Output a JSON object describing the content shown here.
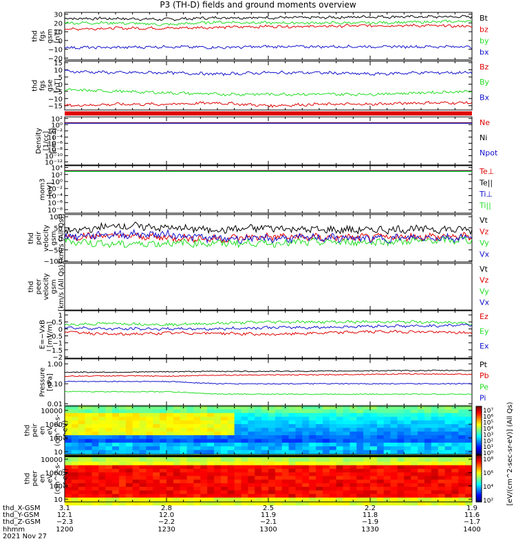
{
  "title": "P3 (TH-D) fields and ground moments overview",
  "colors": {
    "black": "#000000",
    "red": "#e00000",
    "green": "#22dd22",
    "blue": "#1010cc"
  },
  "panels": [
    {
      "id": "fgs-gsm",
      "ylabel": [
        "thd",
        "fgs",
        "gsm",
        "[nT]"
      ],
      "ticks": [
        {
          "v": 30,
          "t": "30"
        },
        {
          "v": 20,
          "t": "20"
        },
        {
          "v": 10,
          "t": "10"
        },
        {
          "v": 0,
          "t": "0"
        },
        {
          "v": -10,
          "t": "−10"
        },
        {
          "v": -20,
          "t": "−20"
        }
      ],
      "ylim": [
        -22,
        32
      ],
      "legend": [
        {
          "text": "Bt",
          "color": "black"
        },
        {
          "text": "bz",
          "color": "red"
        },
        {
          "text": "by",
          "color": "green"
        },
        {
          "text": "bx",
          "color": "blue"
        }
      ]
    },
    {
      "id": "fgs-gse",
      "ylabel": [
        "thd",
        "fgs",
        "gse",
        "[nT]"
      ],
      "ticks": [
        {
          "v": 15,
          "t": "15"
        },
        {
          "v": 10,
          "t": "10"
        },
        {
          "v": 5,
          "t": "5"
        },
        {
          "v": 0,
          "t": "0"
        },
        {
          "v": -5,
          "t": "−5"
        },
        {
          "v": -10,
          "t": "−10"
        },
        {
          "v": -15,
          "t": "−15"
        }
      ],
      "ylim": [
        -18,
        16
      ],
      "legend": [
        {
          "text": "Bz",
          "color": "red"
        },
        {
          "text": "By",
          "color": "green"
        },
        {
          "text": "Bx",
          "color": "blue"
        }
      ]
    },
    {
      "id": "density",
      "ylabel": [
        "Density",
        "[1/cc]",
        "[cm−3]"
      ],
      "ticks": [
        {
          "v": 2,
          "t": "10²"
        },
        {
          "v": 0,
          "t": "10⁰"
        },
        {
          "v": -2,
          "t": "10⁻²"
        },
        {
          "v": -4,
          "t": "10⁻⁴"
        },
        {
          "v": -6,
          "t": "10⁻⁶"
        },
        {
          "v": -8,
          "t": "10⁻⁸"
        },
        {
          "v": -10,
          "t": "10⁻¹⁰"
        },
        {
          "v": -12,
          "t": "10⁻¹²"
        }
      ],
      "ylim": [
        -13,
        2.5
      ],
      "legend": [
        {
          "text": "Ne",
          "color": "red"
        },
        {
          "text": "Ni",
          "color": "black"
        },
        {
          "text": "Npot",
          "color": "blue"
        }
      ]
    },
    {
      "id": "temperature",
      "ylabel": [
        "mom3",
        "[eV]"
      ],
      "ticks": [
        {
          "v": 4,
          "t": "10⁴"
        },
        {
          "v": 2,
          "t": "10²"
        },
        {
          "v": 0,
          "t": "10⁰"
        },
        {
          "v": -2,
          "t": "10⁻²"
        },
        {
          "v": -4,
          "t": "10⁻⁴"
        },
        {
          "v": -6,
          "t": "10⁻⁶"
        },
        {
          "v": -8,
          "t": "10⁻⁸"
        }
      ],
      "ylim": [
        -9,
        4.5
      ],
      "legend": [
        {
          "text": "Te⊥",
          "color": "red"
        },
        {
          "text": "Te||",
          "color": "black"
        },
        {
          "text": "Ti⊥",
          "color": "blue"
        },
        {
          "text": "Ti||",
          "color": "green"
        }
      ]
    },
    {
      "id": "peir-velocity",
      "ylabel": [
        "thd",
        "peir",
        "velocity",
        "gsm",
        "[km/s (All Qs)]"
      ],
      "ticks": [
        {
          "v": 100,
          "t": "100"
        },
        {
          "v": 50,
          "t": "50"
        },
        {
          "v": 0,
          "t": "0"
        },
        {
          "v": -50,
          "t": "−50"
        },
        {
          "v": -100,
          "t": "−100"
        }
      ],
      "ylim": [
        -105,
        110
      ],
      "legend": [
        {
          "text": "Vt",
          "color": "black"
        },
        {
          "text": "Vz",
          "color": "red"
        },
        {
          "text": "Vy",
          "color": "green"
        },
        {
          "text": "Vx",
          "color": "blue"
        }
      ]
    },
    {
      "id": "peer-velocity",
      "ylabel": [
        "thd",
        "peer",
        "velocity",
        "gsm",
        "[km/s (All Qs)]"
      ],
      "ticks": [],
      "ylim": [
        -105,
        110
      ],
      "legend": [
        {
          "text": "Vt",
          "color": "black"
        },
        {
          "text": "Vz",
          "color": "red"
        },
        {
          "text": "Vy",
          "color": "green"
        },
        {
          "text": "Vx",
          "color": "blue"
        }
      ]
    },
    {
      "id": "efield",
      "ylabel": [
        "E=−VxB",
        "[mV/m]"
      ],
      "ticks": [
        {
          "v": 1,
          "t": "1"
        },
        {
          "v": 0.5,
          "t": "0.5"
        },
        {
          "v": 0,
          "t": "0"
        },
        {
          "v": -0.5,
          "t": "−0.5"
        },
        {
          "v": -1,
          "t": "−1"
        },
        {
          "v": -1.5,
          "t": "−1.5"
        },
        {
          "v": -2,
          "t": "−2"
        }
      ],
      "ylim": [
        -2.1,
        1.3
      ],
      "legend": [
        {
          "text": "Ez",
          "color": "red"
        },
        {
          "text": "Ey",
          "color": "green"
        },
        {
          "text": "Ex",
          "color": "blue"
        }
      ]
    },
    {
      "id": "pressure",
      "ylabel": [
        "Pressure",
        "[nPa]"
      ],
      "ticks": [
        {
          "v": 0,
          "t": "1.00"
        },
        {
          "v": -1,
          "t": "0.10"
        },
        {
          "v": -2,
          "t": "0.01"
        }
      ],
      "ylim": [
        -2.1,
        0.25
      ],
      "legend": [
        {
          "text": "Pt",
          "color": "black"
        },
        {
          "text": "Pb",
          "color": "red"
        },
        {
          "text": "Pe",
          "color": "green"
        },
        {
          "text": "Pi",
          "color": "blue"
        }
      ]
    },
    {
      "id": "peir-en-eflux",
      "ylabel": [
        "thd",
        "peir",
        "en",
        "eV",
        "(cm^2-s-",
        "sr-eV)"
      ],
      "ticks": [
        {
          "v": 4,
          "t": "10000"
        },
        {
          "v": 3,
          "t": "1000"
        },
        {
          "v": 2,
          "t": "100"
        },
        {
          "v": 1,
          "t": "10"
        }
      ],
      "ylim": [
        0.8,
        4.3
      ],
      "legend": []
    },
    {
      "id": "peer-en-eflux",
      "ylabel": [
        "thd",
        "peer",
        "en",
        "eV",
        "(cm^2-s-",
        "sr-eV)"
      ],
      "ticks": [
        {
          "v": 4,
          "t": "10000"
        },
        {
          "v": 3,
          "t": "1000"
        },
        {
          "v": 2,
          "t": "100"
        },
        {
          "v": 1,
          "t": "10"
        }
      ],
      "ylim": [
        0.8,
        4.3
      ],
      "legend": []
    }
  ],
  "colorbars": [
    {
      "ticks": [
        "10⁷",
        "10⁶",
        "10⁵",
        "10⁴",
        "10³",
        "10²",
        "10¹",
        "10⁰"
      ]
    },
    {
      "ticks": [
        "10⁸",
        "10⁶",
        "10⁴",
        "10²"
      ]
    }
  ],
  "colorbar_label": "[eV/(cm^2-sec-sr-eV)] (All Qs)",
  "x_axis": {
    "row_labels": [
      "thd_X-GSM",
      "thd_Y-GSM",
      "thd_Z-GSM",
      "hhmm",
      "2021 Nov 27"
    ],
    "columns": [
      {
        "t": 0,
        "X": "3.1",
        "Y": "12.1",
        "Z": "−2.3",
        "hhmm": "1200"
      },
      {
        "t": 30,
        "X": "2.8",
        "Y": "12.0",
        "Z": "−2.2",
        "hhmm": "1230"
      },
      {
        "t": 60,
        "X": "2.5",
        "Y": "11.9",
        "Z": "−2.1",
        "hhmm": "1300"
      },
      {
        "t": 90,
        "X": "2.2",
        "Y": "11.8",
        "Z": "−1.9",
        "hhmm": "1330"
      },
      {
        "t": 120,
        "X": "1.9",
        "Y": "11.6",
        "Z": "−1.7",
        "hhmm": "1400"
      }
    ],
    "xlim": [
      0,
      120
    ]
  },
  "chart_data": {
    "type": "line",
    "title": "P3 (TH-D) fields and ground moments overview",
    "x_unit": "minutes after 1200 UT",
    "x": [
      0,
      15,
      30,
      45,
      60,
      75,
      90,
      105,
      120
    ],
    "series": [
      {
        "panel": "fgs-gsm",
        "name": "Bt",
        "values": [
          25,
          25,
          24,
          26,
          26,
          26,
          27,
          27,
          27
        ]
      },
      {
        "panel": "fgs-gsm",
        "name": "bz",
        "values": [
          13,
          14,
          14,
          15,
          16,
          16,
          17,
          17,
          16
        ]
      },
      {
        "panel": "fgs-gsm",
        "name": "by",
        "values": [
          20,
          20,
          18,
          21,
          20,
          20,
          20,
          21,
          22
        ]
      },
      {
        "panel": "fgs-gsm",
        "name": "bx",
        "values": [
          -8,
          -8,
          -7,
          -8,
          -7,
          -7,
          -7,
          -7,
          -7
        ]
      },
      {
        "panel": "fgs-gse",
        "name": "Bz",
        "values": [
          -15,
          -14,
          -14,
          -13,
          -15,
          -14,
          -14,
          -13,
          -13
        ]
      },
      {
        "panel": "fgs-gse",
        "name": "By",
        "values": [
          -4,
          -5,
          -6,
          -7,
          -7,
          -7,
          -7,
          -6,
          -5
        ]
      },
      {
        "panel": "fgs-gse",
        "name": "Bx",
        "values": [
          9,
          8,
          8,
          7,
          8,
          8,
          7,
          8,
          8
        ]
      },
      {
        "panel": "peir-velocity",
        "name": "Vt",
        "values": [
          30,
          60,
          50,
          40,
          50,
          40,
          40,
          45,
          40
        ]
      },
      {
        "panel": "peir-velocity",
        "name": "Vz",
        "values": [
          10,
          15,
          5,
          0,
          10,
          5,
          5,
          10,
          10
        ]
      },
      {
        "panel": "peir-velocity",
        "name": "Vy",
        "values": [
          -10,
          -25,
          -20,
          -20,
          -20,
          -15,
          -15,
          -10,
          -5
        ]
      },
      {
        "panel": "peir-velocity",
        "name": "Vx",
        "values": [
          10,
          20,
          20,
          0,
          0,
          5,
          0,
          5,
          5
        ]
      },
      {
        "panel": "efield",
        "name": "Ez",
        "values": [
          -0.2,
          -0.4,
          -0.3,
          -0.3,
          -0.4,
          -0.3,
          -0.2,
          -0.2,
          -0.3
        ]
      },
      {
        "panel": "efield",
        "name": "Ey",
        "values": [
          0.3,
          0.4,
          0.3,
          0.4,
          0.5,
          0.5,
          0.5,
          0.5,
          0.4
        ]
      },
      {
        "panel": "efield",
        "name": "Ex",
        "values": [
          0.1,
          0.0,
          0.0,
          0.0,
          0.1,
          0.1,
          0.2,
          0.2,
          0.3
        ]
      },
      {
        "panel": "pressure",
        "name": "Pt",
        "values": [
          0.38,
          0.38,
          0.4,
          0.42,
          0.42,
          0.43,
          0.45,
          0.46,
          0.47
        ]
      },
      {
        "panel": "pressure",
        "name": "Pb",
        "values": [
          0.24,
          0.25,
          0.24,
          0.27,
          0.28,
          0.28,
          0.3,
          0.31,
          0.3
        ]
      },
      {
        "panel": "pressure",
        "name": "Pe",
        "values": [
          0.04,
          0.04,
          0.04,
          0.03,
          0.03,
          0.03,
          0.03,
          0.03,
          0.03
        ]
      },
      {
        "panel": "pressure",
        "name": "Pi",
        "values": [
          0.13,
          0.13,
          0.13,
          0.1,
          0.1,
          0.1,
          0.1,
          0.1,
          0.1
        ]
      }
    ]
  }
}
